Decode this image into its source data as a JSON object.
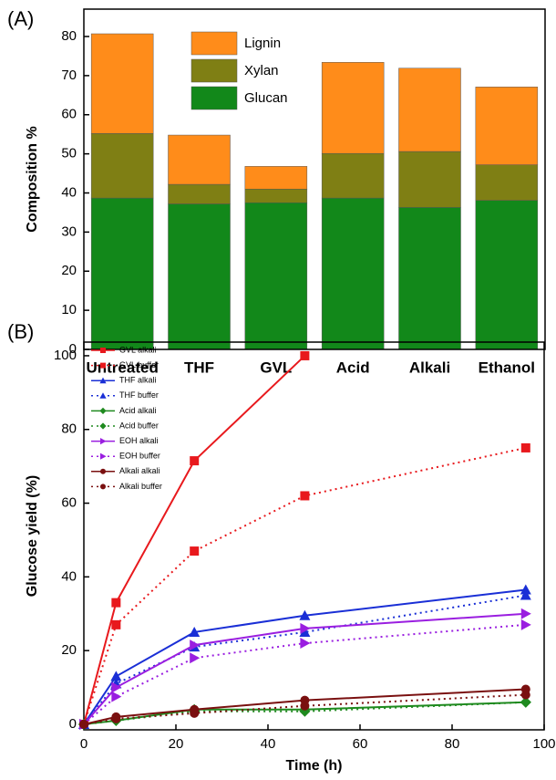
{
  "chart_data": [
    {
      "type": "stacked_bar",
      "panel_label": "(A)",
      "y_label": "Composition %",
      "categories": [
        "Untreated",
        "THF",
        "GVL",
        "Acid",
        "Alkali",
        "Ethanol"
      ],
      "series": [
        {
          "name": "Glucan",
          "color": "#12881a",
          "values": [
            38.7,
            37.2,
            37.5,
            38.7,
            36.3,
            38.1
          ]
        },
        {
          "name": "Xylan",
          "color": "#7f7f14",
          "values": [
            16.5,
            5.0,
            3.5,
            11.4,
            14.3,
            9.1
          ]
        },
        {
          "name": "Lignin",
          "color": "#ff8c1a",
          "values": [
            25.5,
            12.6,
            5.8,
            23.3,
            21.3,
            19.9
          ]
        }
      ],
      "ylim": [
        0,
        87
      ],
      "yticks": [
        0,
        10,
        20,
        30,
        40,
        50,
        60,
        70,
        80
      ]
    },
    {
      "type": "line",
      "panel_label": "(B)",
      "y_label": "Glucose yield (%)",
      "x_label": "Time (h)",
      "x": [
        0,
        7,
        24,
        48,
        96
      ],
      "series": [
        {
          "name": "GVL alkali",
          "color": "#e8191d",
          "line_style": "solid",
          "marker": "square",
          "values": [
            0,
            33,
            71.5,
            100,
            null
          ]
        },
        {
          "name": "GVL buffer",
          "color": "#e8191d",
          "line_style": "dotted",
          "marker": "square",
          "values": [
            0,
            27,
            47,
            62,
            75
          ]
        },
        {
          "name": "THF alkali",
          "color": "#1a2fd6",
          "line_style": "solid",
          "marker": "triangle",
          "values": [
            0,
            13,
            25,
            29.5,
            36.5
          ]
        },
        {
          "name": "THF buffer",
          "color": "#1a2fd6",
          "line_style": "dotted",
          "marker": "triangle",
          "values": [
            0,
            11,
            21,
            25,
            35
          ]
        },
        {
          "name": "Acid alkali",
          "color": "#1f8a1f",
          "line_style": "solid",
          "marker": "diamond",
          "values": [
            0,
            1,
            4,
            4,
            6
          ]
        },
        {
          "name": "Acid buffer",
          "color": "#1f8a1f",
          "line_style": "dotted",
          "marker": "diamond",
          "values": [
            0,
            1,
            3.5,
            3.5,
            6
          ]
        },
        {
          "name": "EOH alkali",
          "color": "#9a1ee0",
          "line_style": "solid",
          "marker": "triangle-right",
          "values": [
            0,
            10,
            21.5,
            26,
            30
          ]
        },
        {
          "name": "EOH buffer",
          "color": "#9a1ee0",
          "line_style": "dotted",
          "marker": "triangle-right",
          "values": [
            0,
            7.5,
            18,
            22,
            27
          ]
        },
        {
          "name": "Alkali alkali",
          "color": "#7a1010",
          "line_style": "solid",
          "marker": "circle",
          "values": [
            0,
            2,
            4,
            6.5,
            9.5
          ]
        },
        {
          "name": "Alkali buffer",
          "color": "#7a1010",
          "line_style": "dotted",
          "marker": "circle",
          "values": [
            0,
            1.5,
            3,
            5,
            8
          ]
        }
      ],
      "xlim": [
        0,
        100
      ],
      "xticks": [
        0,
        20,
        40,
        60,
        80,
        100
      ],
      "ylim": [
        -1.5,
        103.7
      ],
      "yticks": [
        0,
        20,
        40,
        60,
        80,
        100
      ]
    }
  ]
}
